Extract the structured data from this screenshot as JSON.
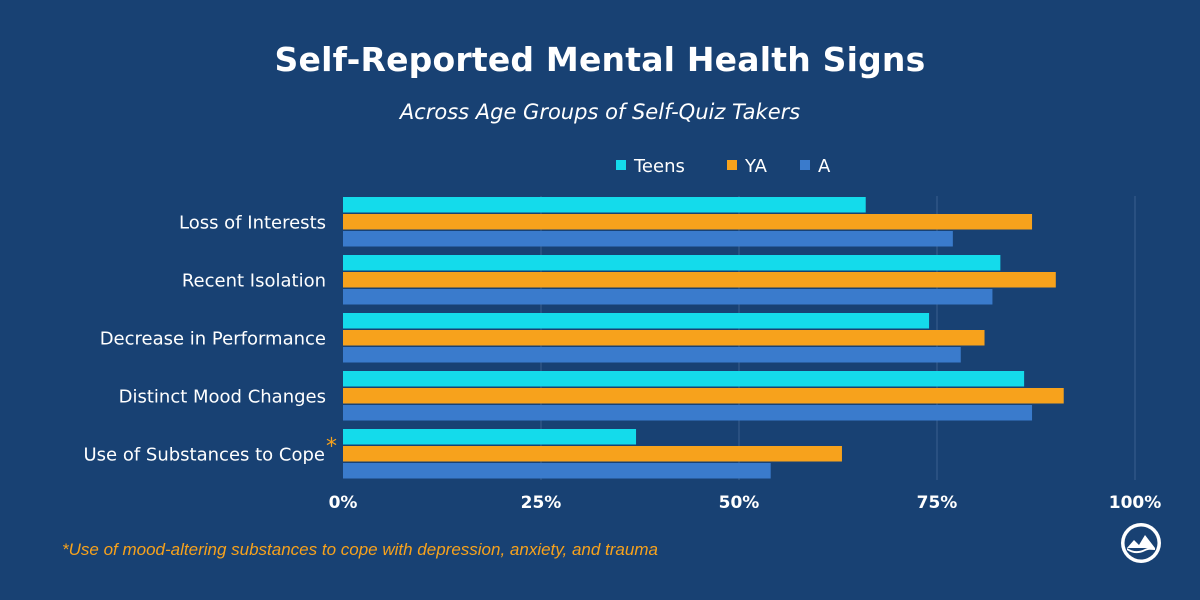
{
  "header": {
    "title": "Self-Reported Mental Health Signs",
    "subtitle": "Across Age Groups of Self-Quiz Takers"
  },
  "footnote": "*Use of mood-altering substances to cope with depression, anxiety, and trauma",
  "logo_icon": "mountain-logo-icon",
  "colors": {
    "background": "#184173",
    "teens": "#14dbeb",
    "ya": "#f7a21c",
    "a": "#3a7bcc",
    "gridline": "#3a5f8f",
    "footnote": "#f7a21c"
  },
  "chart_data": {
    "type": "bar",
    "orientation": "horizontal",
    "title": "Self-Reported Mental Health Signs",
    "subtitle": "Across Age Groups of Self-Quiz Takers",
    "categories": [
      "Loss of Interests",
      "Recent Isolation",
      "Decrease in Performance",
      "Distinct Mood Changes",
      "Use of Substances to Cope"
    ],
    "category_markers": [
      "",
      "",
      "",
      "",
      "*"
    ],
    "series": [
      {
        "name": "Teens",
        "color": "#14dbeb",
        "values": [
          66,
          83,
          74,
          86,
          37
        ]
      },
      {
        "name": "YA",
        "color": "#f7a21c",
        "values": [
          87,
          90,
          81,
          91,
          63
        ]
      },
      {
        "name": "A",
        "color": "#3a7bcc",
        "values": [
          77,
          82,
          78,
          87,
          54
        ]
      }
    ],
    "xlim": [
      0,
      100
    ],
    "x_ticks": [
      0,
      25,
      50,
      75,
      100
    ],
    "x_tick_labels": [
      "0%",
      "25%",
      "50%",
      "75%",
      "100%"
    ],
    "grid": "vertical",
    "legend": "top-center"
  }
}
